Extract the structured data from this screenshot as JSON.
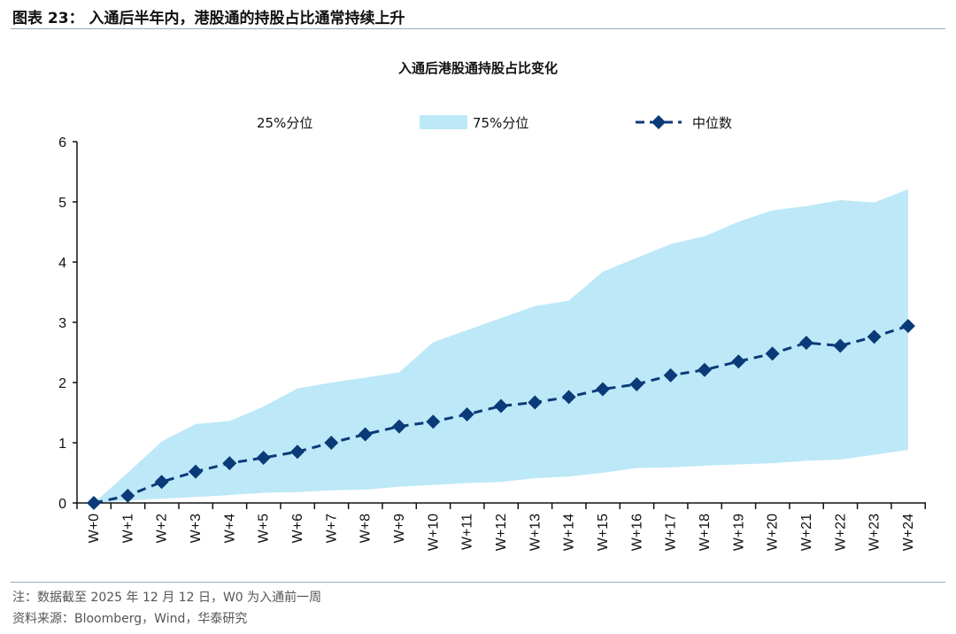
{
  "figure_title": "图表 23：  入通后半年内，港股通的持股占比通常持续上升",
  "notes": [
    "注：数据截至 2025 年 12 月 12 日，W0 为入通前一周",
    "资料来源：Bloomberg，Wind，华泰研究"
  ],
  "colors": {
    "band": "#bde8f7",
    "median": "#0a3a78"
  },
  "chart_data": {
    "type": "area",
    "title": "入通后港股通持股占比变化",
    "xlabel": "",
    "ylabel": "",
    "ylim": [
      0,
      6
    ],
    "yticks": [
      "0",
      "1",
      "2",
      "3",
      "4",
      "5",
      "6"
    ],
    "legend_position": "top",
    "categories": [
      "W+0",
      "W+1",
      "W+2",
      "W+3",
      "W+4",
      "W+5",
      "W+6",
      "W+7",
      "W+8",
      "W+9",
      "W+10",
      "W+11",
      "W+12",
      "W+13",
      "W+14",
      "W+15",
      "W+16",
      "W+17",
      "W+18",
      "W+19",
      "W+20",
      "W+21",
      "W+22",
      "W+23",
      "W+24"
    ],
    "series": [
      {
        "name": "25%分位",
        "values": [
          0,
          0.04,
          0.07,
          0.1,
          0.13,
          0.17,
          0.18,
          0.21,
          0.22,
          0.27,
          0.3,
          0.33,
          0.35,
          0.41,
          0.44,
          0.5,
          0.58,
          0.59,
          0.62,
          0.64,
          0.66,
          0.7,
          0.72,
          0.8,
          0.88
        ]
      },
      {
        "name": "75%分位",
        "values": [
          0,
          0.5,
          1.02,
          1.31,
          1.36,
          1.6,
          1.9,
          2.0,
          2.08,
          2.17,
          2.67,
          2.87,
          3.07,
          3.27,
          3.36,
          3.84,
          4.07,
          4.3,
          4.43,
          4.67,
          4.86,
          4.93,
          5.03,
          4.99,
          5.21
        ]
      },
      {
        "name": "中位数",
        "values": [
          0,
          0.12,
          0.35,
          0.52,
          0.66,
          0.75,
          0.85,
          1.0,
          1.14,
          1.27,
          1.35,
          1.47,
          1.61,
          1.67,
          1.76,
          1.89,
          1.97,
          2.12,
          2.21,
          2.35,
          2.48,
          2.66,
          2.61,
          2.76,
          2.94
        ]
      }
    ]
  }
}
